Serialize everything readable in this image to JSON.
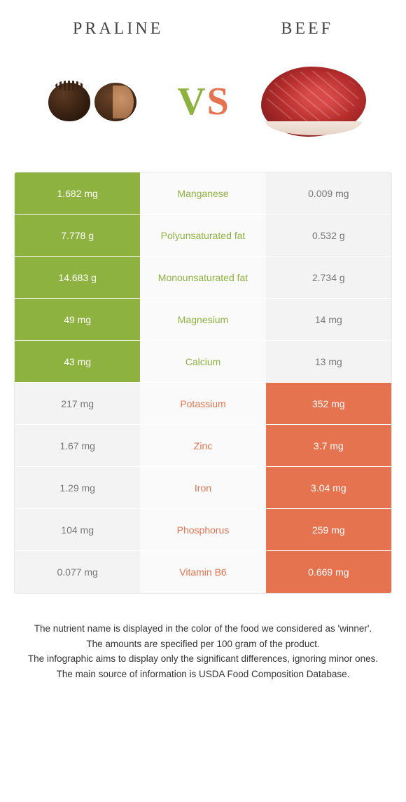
{
  "header": {
    "left_title": "Praline",
    "right_title": "Beef"
  },
  "vs": {
    "v": "V",
    "s": "S"
  },
  "colors": {
    "praline_green": "#8eb23f",
    "beef_orange": "#e6734f",
    "neutral_bg": "#fafafa",
    "loser_cell": "#f3f3f3",
    "loser_text": "#777777"
  },
  "rows": [
    {
      "nutrient": "Manganese",
      "left": "1.682 mg",
      "right": "0.009 mg",
      "winner": "left"
    },
    {
      "nutrient": "Polyunsaturated fat",
      "left": "7.778 g",
      "right": "0.532 g",
      "winner": "left"
    },
    {
      "nutrient": "Monounsaturated fat",
      "left": "14.683 g",
      "right": "2.734 g",
      "winner": "left"
    },
    {
      "nutrient": "Magnesium",
      "left": "49 mg",
      "right": "14 mg",
      "winner": "left"
    },
    {
      "nutrient": "Calcium",
      "left": "43 mg",
      "right": "13 mg",
      "winner": "left"
    },
    {
      "nutrient": "Potassium",
      "left": "217 mg",
      "right": "352 mg",
      "winner": "right"
    },
    {
      "nutrient": "Zinc",
      "left": "1.67 mg",
      "right": "3.7 mg",
      "winner": "right"
    },
    {
      "nutrient": "Iron",
      "left": "1.29 mg",
      "right": "3.04 mg",
      "winner": "right"
    },
    {
      "nutrient": "Phosphorus",
      "left": "104 mg",
      "right": "259 mg",
      "winner": "right"
    },
    {
      "nutrient": "Vitamin B6",
      "left": "0.077 mg",
      "right": "0.669 mg",
      "winner": "right"
    }
  ],
  "footnotes": [
    "The nutrient name is displayed in the color of the food we considered as 'winner'.",
    "The amounts are specified per 100 gram of the product.",
    "The infographic aims to display only the significant differences, ignoring minor ones.",
    "The main source of information is USDA Food Composition Database."
  ]
}
